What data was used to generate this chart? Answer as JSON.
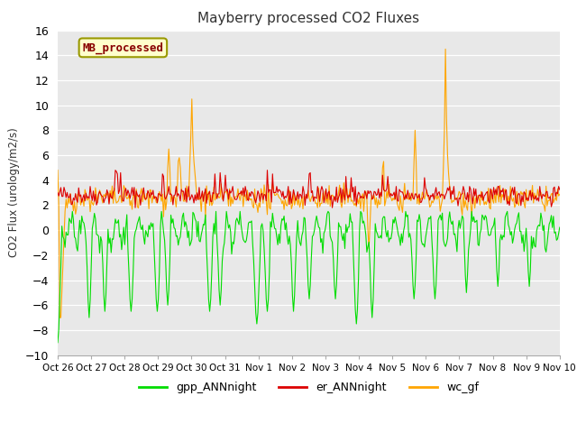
{
  "title": "Mayberry processed CO2 Fluxes",
  "ylabel": "CO2 Flux (urology/m2/s)",
  "ylim": [
    -10,
    16
  ],
  "yticks": [
    -10,
    -8,
    -6,
    -4,
    -2,
    0,
    2,
    4,
    6,
    8,
    10,
    12,
    14,
    16
  ],
  "fig_facecolor": "#ffffff",
  "plot_bg_color": "#e8e8e8",
  "legend_label": "MB_processed",
  "legend_text_color": "#880000",
  "legend_box_facecolor": "#ffffcc",
  "legend_box_edgecolor": "#999900",
  "series": {
    "gpp_ANNnight": {
      "color": "#00dd00",
      "linewidth": 0.8
    },
    "er_ANNnight": {
      "color": "#dd0000",
      "linewidth": 0.8
    },
    "wc_gf": {
      "color": "#ffa500",
      "linewidth": 0.8
    }
  },
  "xtick_labels": [
    "Oct 26",
    "Oct 27",
    "Oct 28",
    "Oct 29",
    "Oct 30",
    "Oct 31",
    "Nov 1",
    "Nov 2",
    "Nov 3",
    "Nov 4",
    "Nov 5",
    "Nov 6",
    "Nov 7",
    "Nov 8",
    "Nov 9",
    "Nov 10"
  ],
  "n_points": 480,
  "seed": 42
}
